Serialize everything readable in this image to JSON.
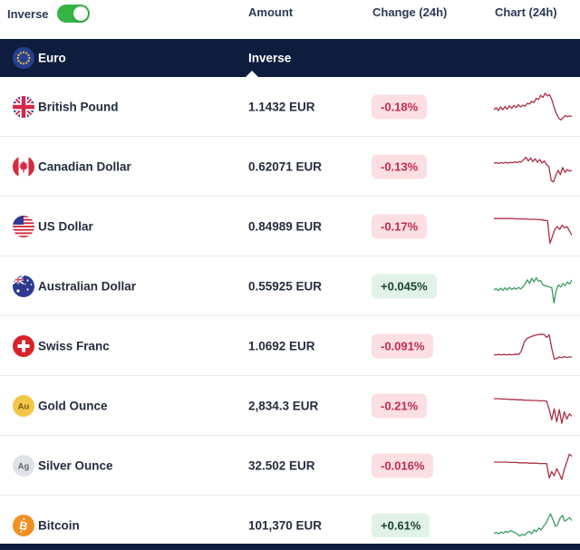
{
  "controls": {
    "inverse_label": "Inverse",
    "inverse_on": true
  },
  "columns": {
    "amount": "Amount",
    "change": "Change (24h)",
    "chart": "Chart (24h)"
  },
  "base_row": {
    "name": "Euro",
    "icon": "eu-flag-icon",
    "selected_column_label": "Inverse"
  },
  "colors": {
    "navy": "#0e1c3e",
    "toggle_green": "#35b445",
    "badge_down_bg": "#fbdfe2",
    "badge_down_text": "#c42a4e",
    "badge_up_bg": "#e1f3e8",
    "badge_up_text": "#1b4332",
    "spark_down": "#ac2f47",
    "spark_up": "#3e9b5f"
  },
  "rows": [
    {
      "name": "British Pound",
      "icon": "uk-flag-icon",
      "icon_text": "",
      "amount": "1.1432 EUR",
      "change": "-0.18%",
      "direction": "down",
      "spark": [
        58,
        52,
        60,
        50,
        58,
        49,
        56,
        47,
        54,
        46,
        52,
        44,
        50,
        45,
        48,
        40,
        42,
        34,
        38,
        26,
        30,
        18,
        24,
        12,
        20,
        16,
        30,
        50,
        68,
        80,
        86,
        80,
        74,
        77,
        75,
        76
      ]
    },
    {
      "name": "Canadian Dollar",
      "icon": "canada-flag-icon",
      "icon_text": "",
      "amount": "0.62071 EUR",
      "change": "-0.13%",
      "direction": "down",
      "spark": [
        40,
        39,
        41,
        39,
        40,
        38,
        40,
        38,
        39,
        37,
        38,
        36,
        37,
        30,
        24,
        34,
        26,
        36,
        28,
        38,
        30,
        40,
        34,
        44,
        50,
        88,
        92,
        74,
        60,
        72,
        52,
        66,
        58,
        62,
        60
      ]
    },
    {
      "name": "US Dollar",
      "icon": "us-flag-icon",
      "icon_text": "",
      "amount": "0.84989 EUR",
      "change": "-0.17%",
      "direction": "down",
      "spark": [
        28,
        28,
        28,
        28,
        28,
        28,
        28,
        28,
        28,
        29,
        29,
        29,
        29,
        29,
        30,
        30,
        30,
        30,
        31,
        31,
        32,
        33,
        34,
        96,
        78,
        58,
        50,
        58,
        46,
        54,
        50,
        62,
        74
      ]
    },
    {
      "name": "Australian Dollar",
      "icon": "australia-flag-icon",
      "icon_text": "",
      "amount": "0.55925 EUR",
      "change": "+0.045%",
      "direction": "up",
      "spark": [
        60,
        56,
        62,
        55,
        61,
        54,
        60,
        53,
        59,
        54,
        58,
        53,
        57,
        52,
        44,
        32,
        42,
        28,
        38,
        26,
        36,
        34,
        46,
        48,
        50,
        52,
        54,
        96,
        60,
        46,
        52,
        42,
        48,
        38,
        44,
        33
      ]
    },
    {
      "name": "Swiss Franc",
      "icon": "swiss-flag-icon",
      "icon_text": "",
      "amount": "1.0692 EUR",
      "change": "-0.091%",
      "direction": "down",
      "spark": [
        74,
        74,
        73,
        74,
        73,
        74,
        73,
        74,
        73,
        72,
        73,
        62,
        40,
        30,
        26,
        23,
        21,
        19,
        18,
        17,
        18,
        26,
        19,
        56,
        86,
        84,
        80,
        82,
        79,
        81,
        80,
        80
      ]
    },
    {
      "name": "Gold Ounce",
      "icon": "gold-au-icon",
      "icon_text": "Au",
      "amount": "2,834.3 EUR",
      "change": "-0.21%",
      "direction": "down",
      "spark": [
        30,
        30,
        30,
        31,
        31,
        31,
        32,
        32,
        32,
        33,
        33,
        33,
        34,
        34,
        34,
        35,
        35,
        35,
        36,
        36,
        36,
        37,
        60,
        88,
        58,
        94,
        60,
        98,
        66,
        86,
        72,
        78
      ]
    },
    {
      "name": "Silver Ounce",
      "icon": "silver-ag-icon",
      "icon_text": "Ag",
      "amount": "32.502 EUR",
      "change": "-0.016%",
      "direction": "down",
      "spark": [
        40,
        40,
        40,
        40,
        40,
        40,
        41,
        41,
        41,
        41,
        42,
        42,
        42,
        42,
        43,
        43,
        43,
        43,
        44,
        44,
        44,
        44,
        84,
        66,
        78,
        58,
        72,
        88,
        60,
        40,
        18,
        24
      ]
    },
    {
      "name": "Bitcoin",
      "icon": "bitcoin-icon",
      "icon_text": "B",
      "amount": "101,370 EUR",
      "change": "+0.61%",
      "direction": "up",
      "spark": [
        72,
        69,
        73,
        68,
        71,
        66,
        69,
        64,
        67,
        70,
        74,
        79,
        74,
        77,
        70,
        66,
        73,
        62,
        67,
        57,
        62,
        52,
        44,
        30,
        18,
        34,
        52,
        48,
        30,
        22,
        38,
        34,
        28,
        36
      ]
    }
  ]
}
